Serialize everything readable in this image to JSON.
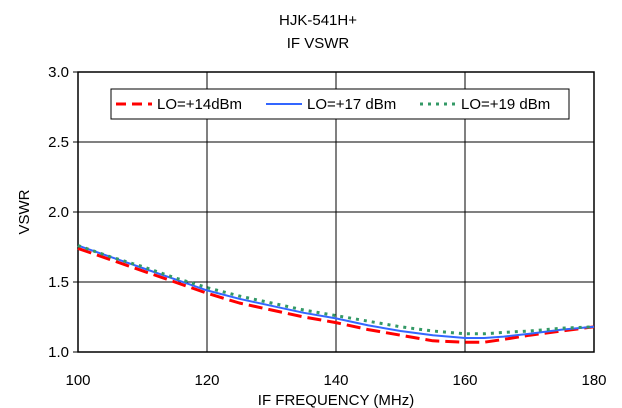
{
  "chart_data": {
    "type": "line",
    "title": "HJK-541H+",
    "subtitle": "IF VSWR",
    "xlabel": "IF FREQUENCY (MHz)",
    "ylabel": "VSWR",
    "xlim": [
      100,
      180
    ],
    "ylim": [
      1.0,
      3.0
    ],
    "x_ticks": [
      "100",
      "120",
      "140",
      "160",
      "180"
    ],
    "y_ticks": [
      "1.0",
      "1.5",
      "2.0",
      "2.5",
      "3.0"
    ],
    "x_tick_values": [
      100,
      120,
      140,
      160,
      180
    ],
    "y_tick_values": [
      1.0,
      1.5,
      2.0,
      2.5,
      3.0
    ],
    "grid": true,
    "legend_position": "top",
    "series": [
      {
        "name": "LO=+14dBm",
        "color": "#ff0000",
        "style": "dashed",
        "x": [
          100,
          105,
          110,
          115,
          120,
          125,
          130,
          135,
          140,
          145,
          150,
          155,
          160,
          163,
          166,
          170,
          175,
          180
        ],
        "y": [
          1.74,
          1.66,
          1.58,
          1.5,
          1.42,
          1.35,
          1.3,
          1.25,
          1.21,
          1.16,
          1.12,
          1.08,
          1.07,
          1.07,
          1.09,
          1.12,
          1.15,
          1.18
        ]
      },
      {
        "name": "LO=+17 dBm",
        "color": "#3366ff",
        "style": "solid",
        "x": [
          100,
          105,
          110,
          115,
          120,
          125,
          130,
          135,
          140,
          145,
          150,
          155,
          160,
          163,
          166,
          170,
          175,
          180
        ],
        "y": [
          1.76,
          1.68,
          1.6,
          1.52,
          1.44,
          1.38,
          1.33,
          1.28,
          1.24,
          1.19,
          1.15,
          1.12,
          1.1,
          1.1,
          1.11,
          1.13,
          1.16,
          1.18
        ]
      },
      {
        "name": "LO=+19 dBm",
        "color": "#339966",
        "style": "dotted",
        "x": [
          100,
          105,
          110,
          115,
          120,
          125,
          130,
          135,
          140,
          145,
          150,
          155,
          160,
          163,
          166,
          170,
          175,
          180
        ],
        "y": [
          1.76,
          1.68,
          1.61,
          1.53,
          1.46,
          1.4,
          1.35,
          1.3,
          1.26,
          1.22,
          1.18,
          1.15,
          1.13,
          1.13,
          1.14,
          1.15,
          1.17,
          1.18
        ]
      }
    ]
  }
}
